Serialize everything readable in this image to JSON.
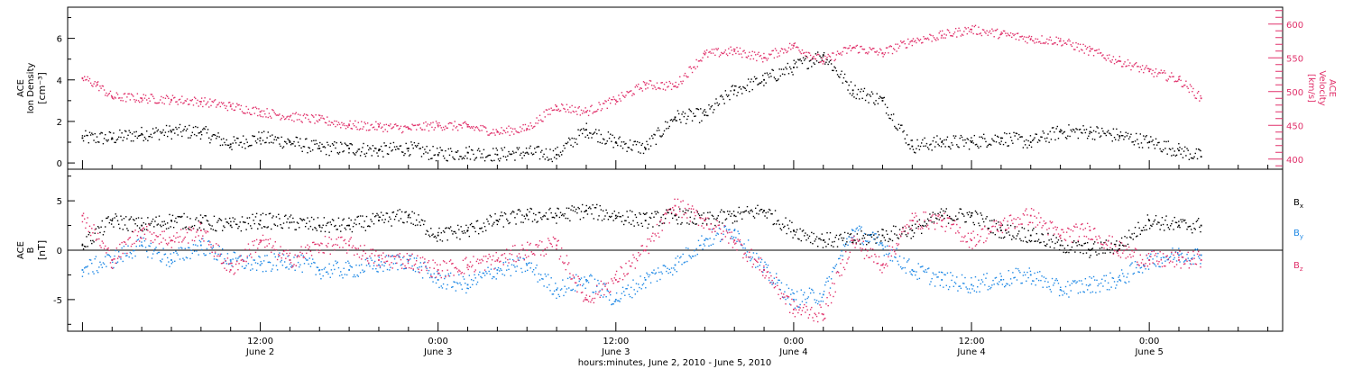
{
  "figure": {
    "xlabel": "hours:minutes, June  2, 2010 - June  5, 2010",
    "x_ticks": [
      {
        "hours": 12,
        "time": "12:00",
        "date": "June 2"
      },
      {
        "hours": 24,
        "time": "0:00",
        "date": "June 3"
      },
      {
        "hours": 36,
        "time": "12:00",
        "date": "June 3"
      },
      {
        "hours": 48,
        "time": "0:00",
        "date": "June 4"
      },
      {
        "hours": 60,
        "time": "12:00",
        "date": "June 4"
      },
      {
        "hours": 72,
        "time": "0:00",
        "date": "June 5"
      }
    ],
    "x_range_hours": [
      -1,
      81
    ]
  },
  "chart_data": [
    {
      "type": "scatter",
      "panel": "top",
      "ylabel_left": [
        "ACE",
        "Ion Density",
        "[cm⁻³]"
      ],
      "ylabel_right": [
        "ACE",
        "Velocity",
        "[km/s]"
      ],
      "ylim_left": [
        -0.3,
        7.5
      ],
      "ylim_right": [
        385,
        625
      ],
      "left_ticks": [
        0,
        2,
        4,
        6
      ],
      "right_ticks": [
        400,
        450,
        500,
        550,
        600
      ],
      "colors": {
        "density": "#000000",
        "velocity": "#e0306a"
      },
      "series": [
        {
          "name": "",
          "axis": "left",
          "x": [
            0,
            2,
            4,
            6,
            8,
            10,
            12,
            14,
            16,
            18,
            20,
            22,
            24,
            26,
            28,
            30,
            32,
            34,
            36,
            38,
            40,
            42,
            44,
            46,
            48,
            50,
            52,
            54,
            56,
            58,
            60,
            62,
            64,
            66,
            68,
            70,
            72,
            74,
            75.5
          ],
          "y": [
            1.2,
            1.2,
            1.4,
            1.5,
            1.5,
            0.9,
            1.2,
            1.0,
            0.7,
            0.7,
            0.6,
            0.7,
            0.4,
            0.5,
            0.4,
            0.5,
            0.4,
            1.6,
            1.0,
            0.7,
            2.2,
            2.3,
            3.5,
            4.0,
            4.6,
            5.2,
            3.5,
            3.0,
            0.8,
            1.0,
            1.0,
            1.2,
            1.0,
            1.5,
            1.5,
            1.3,
            1.0,
            0.6,
            0.3
          ]
        },
        {
          "name": "",
          "axis": "right",
          "x": [
            0,
            1,
            2,
            4,
            6,
            8,
            10,
            12,
            14,
            16,
            18,
            20,
            22,
            24,
            26,
            28,
            30,
            32,
            34,
            36,
            38,
            40,
            42,
            44,
            46,
            48,
            50,
            52,
            54,
            56,
            58,
            60,
            62,
            64,
            66,
            68,
            70,
            72,
            74,
            75.5
          ],
          "y": [
            520,
            510,
            492,
            490,
            488,
            485,
            478,
            470,
            463,
            458,
            450,
            448,
            445,
            450,
            448,
            440,
            445,
            478,
            470,
            487,
            510,
            508,
            555,
            560,
            550,
            568,
            545,
            565,
            557,
            575,
            583,
            592,
            585,
            578,
            575,
            560,
            545,
            530,
            518,
            490
          ]
        }
      ]
    },
    {
      "type": "scatter",
      "panel": "bottom",
      "ylabel_left": [
        "ACE",
        "B",
        "[nT]"
      ],
      "ylim": [
        -8.2,
        8.2
      ],
      "ticks": [
        -5,
        0,
        5
      ],
      "legend_position": "right",
      "series": [
        {
          "name": "Bx",
          "name_main": "B",
          "name_sub": "x",
          "color": "#000000",
          "x": [
            0,
            2,
            4,
            6,
            8,
            10,
            12,
            14,
            16,
            18,
            20,
            22,
            24,
            26,
            28,
            30,
            32,
            34,
            36,
            38,
            40,
            42,
            44,
            46,
            48,
            50,
            52,
            54,
            56,
            58,
            60,
            62,
            64,
            66,
            68,
            70,
            72,
            74,
            75.5
          ],
          "y": [
            0.5,
            3.0,
            2.5,
            3.0,
            2.8,
            2.5,
            3.0,
            2.8,
            2.5,
            2.5,
            3.0,
            3.5,
            1.5,
            2.0,
            3.0,
            3.5,
            3.5,
            4.0,
            3.5,
            3.0,
            3.5,
            3.0,
            3.5,
            4.0,
            2.0,
            1.0,
            1.0,
            1.5,
            2.0,
            3.5,
            3.5,
            2.0,
            1.5,
            0.5,
            0.0,
            0.5,
            3.0,
            2.5,
            2.5
          ]
        },
        {
          "name": "By",
          "name_main": "B",
          "name_sub": "y",
          "color": "#1e88e5",
          "x": [
            0,
            2,
            4,
            6,
            8,
            10,
            12,
            14,
            16,
            18,
            20,
            22,
            24,
            26,
            28,
            30,
            32,
            34,
            36,
            38,
            40,
            42,
            44,
            46,
            48,
            50,
            52,
            54,
            56,
            58,
            60,
            62,
            64,
            66,
            68,
            70,
            72,
            74,
            75.5
          ],
          "y": [
            -2.0,
            -1.0,
            0.5,
            -1.0,
            0.5,
            -1.0,
            -1.5,
            -1.0,
            -2.0,
            -2.0,
            -1.5,
            -1.0,
            -3.0,
            -3.5,
            -2.0,
            -1.5,
            -4.0,
            -3.0,
            -5.0,
            -3.0,
            -1.5,
            1.0,
            2.0,
            -2.0,
            -5.0,
            -4.5,
            2.0,
            0.5,
            -2.0,
            -3.0,
            -3.5,
            -3.0,
            -2.5,
            -4.0,
            -3.5,
            -3.0,
            -1.0,
            -0.5,
            -0.5
          ]
        },
        {
          "name": "Bz",
          "name_main": "B",
          "name_sub": "z",
          "color": "#e0306a",
          "x": [
            0,
            2,
            4,
            6,
            8,
            10,
            12,
            14,
            16,
            18,
            20,
            22,
            24,
            26,
            28,
            30,
            32,
            34,
            36,
            38,
            40,
            42,
            44,
            46,
            48,
            50,
            52,
            54,
            56,
            58,
            60,
            62,
            64,
            66,
            68,
            70,
            72,
            74,
            75.5
          ],
          "y": [
            3.5,
            -1.0,
            2.0,
            1.0,
            2.0,
            -2.0,
            1.0,
            -1.0,
            0.5,
            0.5,
            -1.0,
            -1.0,
            -2.0,
            -1.5,
            -1.0,
            0.0,
            0.5,
            -5.0,
            -3.0,
            0.0,
            4.5,
            3.0,
            1.0,
            -2.0,
            -6.0,
            -6.5,
            1.0,
            -1.5,
            3.0,
            3.0,
            1.0,
            2.5,
            3.5,
            1.5,
            2.0,
            0.0,
            -1.0,
            -1.0,
            -1.0
          ]
        }
      ]
    }
  ]
}
